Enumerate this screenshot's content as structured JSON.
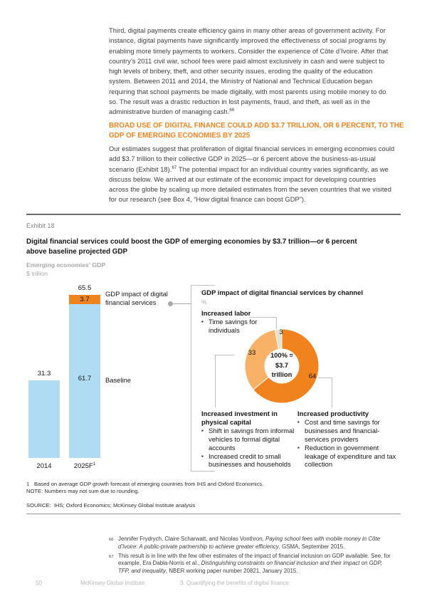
{
  "colors": {
    "accent_orange": "#F0831E",
    "light_orange": "#F8B166",
    "beige": "#E9E1CE",
    "light_blue": "#AFDBF3",
    "gray_text": "#A6A8AB"
  },
  "body": {
    "paragraph1": {
      "text": "Third, digital payments create efficiency gains in many other areas of government activity. For instance, digital payments have significantly improved the effectiveness of social programs by enabling more timely payments to workers. Consider the experience of Côte d’Ivoire. After that country’s 2011 civil war, school fees were paid almost exclusively in cash and were subject to high levels of bribery, theft, and other security issues, eroding the quality of the education system. Between 2011 and 2014, the Ministry of National and Technical Education began requiring that school payments be made digitally, with most parents using mobile money to do so. The result was a drastic reduction in lost payments, fraud, and theft, as well as in the administrative burden of managing cash.",
      "ref": "66"
    },
    "heading": "BROAD USE OF DIGITAL FINANCE COULD ADD $3.7 TRILLION, OR 6 PERCENT, TO THE GDP OF EMERGING ECONOMIES BY 2025",
    "paragraph2": {
      "before": "Our estimates suggest that proliferation of digital financial services in emerging economies could add $3.7 trillion to their collective GDP in 2025—or 6 percent above the business-as-usual scenario (Exhibit 18).",
      "ref": "67",
      "after": " The potential impact for an individual country varies significantly, as we discuss below. We arrived at our estimate of the economic impact for developing countries across the globe by scaling up more detailed estimates from the seven countries that we visited for our research (see Box 4, “How digital finance can boost GDP”)."
    }
  },
  "exhibit": {
    "label": "Exhibit 18",
    "title": "Digital financial services could boost the GDP of emerging economies by $3.7 trillion—or 6 percent above baseline projected GDP",
    "kicker": "Emerging economies’ GDP",
    "unit": "$ trillion",
    "forecast_sup": "1",
    "panel": {
      "labor_bullets": [
        "Time savings for individuals"
      ],
      "investment_bullets": [
        "Shift in savings from informal vehicles to formal digital accounts",
        "Increased credit to small businesses and households"
      ],
      "productivity_bullets": [
        "Cost and time savings for businesses and financial-services providers",
        "Reduction in government leakage of expenditure and tax collection"
      ]
    },
    "footnote_num": "1",
    "footnote_text": "Based on average GDP growth forecast of emerging countries from IHS and Oxford Economics.",
    "note": "NOTE: Numbers may not sum due to rounding.",
    "source": "SOURCE:  IHS; Oxford Economics; McKinsey Global Institute analysis"
  },
  "chart_data": [
    {
      "type": "bar",
      "title": "Emerging economies' GDP",
      "ylabel": "$ trillion",
      "categories": [
        "2014",
        "2025F"
      ],
      "series": [
        {
          "name": "Baseline",
          "color": "#AFDBF3",
          "values": [
            31.3,
            61.7
          ]
        },
        {
          "name": "GDP impact of digital financial services",
          "color": "#F0831E",
          "values": [
            0,
            3.7
          ]
        }
      ],
      "totals": [
        31.3,
        65.5
      ],
      "ylim": [
        0,
        65.5
      ],
      "grid": false,
      "legend_position": "right-of-bars"
    },
    {
      "type": "pie",
      "title": "GDP impact of digital financial services by channel",
      "unit": "%",
      "center": {
        "l1": "100% =",
        "l2": "$3.7",
        "l3": "trillion"
      },
      "start_angle_deg": -10.8,
      "slices": [
        {
          "label": "Increased labor",
          "value": 3,
          "color": "#E9E1CE"
        },
        {
          "label": "Increased productivity",
          "value": 64,
          "color": "#F0831E"
        },
        {
          "label": "Increased investment in physical capital",
          "value": 33,
          "color": "#F8B166"
        }
      ]
    }
  ],
  "page_footnotes": [
    {
      "num": "66",
      "pre": "Jennifer Frydrych, Claire Scharwatt, and Nicolas Vonthron, ",
      "italic": "Paying school fees with mobile money in Côte d’Ivoire: A public-private partnership to achieve greater efficiency",
      "post": ", GSMA, September 2015."
    },
    {
      "num": "67",
      "pre": "This result is in line with the few other estimates of the impact of financial inclusion on GDP available. See, for example, Era Dabla-Norris et al., ",
      "italic": "Distinguishing constraints on financial inclusion and their impact on GDP, TFP, and inequality",
      "post": ", NBER working paper number 20821, January 2015."
    }
  ],
  "footer": {
    "page_number": "50",
    "institute": "McKinsey Global Institute",
    "section": "3. Quantifying the benefits of digital finance"
  }
}
